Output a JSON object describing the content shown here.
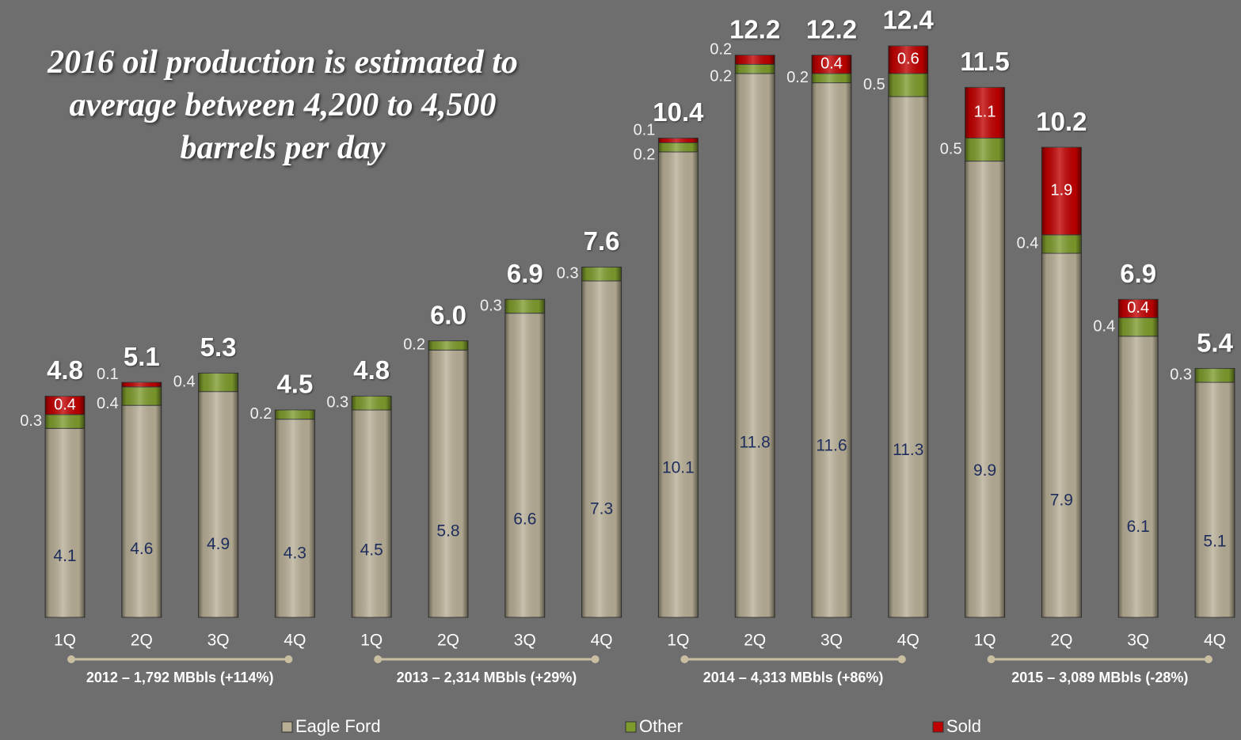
{
  "chart_data": {
    "type": "stacked_bar",
    "title": "2016 oil production is estimated to average between 4,200 to 4,500 barrels per day",
    "categories": [
      "1Q",
      "2Q",
      "3Q",
      "4Q",
      "1Q",
      "2Q",
      "3Q",
      "4Q",
      "1Q",
      "2Q",
      "3Q",
      "4Q",
      "1Q",
      "2Q",
      "3Q",
      "4Q"
    ],
    "groups": [
      {
        "label": "2012 – 1,792 MBbls (+114%)"
      },
      {
        "label": "2013 – 2,314 MBbls (+29%)"
      },
      {
        "label": "2014 – 4,313 MBbls (+86%)"
      },
      {
        "label": "2015 – 3,089 MBbls (-28%)"
      }
    ],
    "series": [
      {
        "name": "Eagle Ford",
        "color": "#b7ae95",
        "values": [
          4.1,
          4.6,
          4.9,
          4.3,
          4.5,
          5.8,
          6.6,
          7.3,
          10.1,
          11.8,
          11.6,
          11.3,
          9.9,
          7.9,
          6.1,
          5.1
        ]
      },
      {
        "name": "Other",
        "color": "#7d9b2c",
        "values": [
          0.3,
          0.4,
          0.4,
          0.2,
          0.3,
          0.2,
          0.3,
          0.3,
          0.2,
          0.2,
          0.2,
          0.5,
          0.5,
          0.4,
          0.4,
          0.3
        ]
      },
      {
        "name": "Sold",
        "color": "#c00000",
        "values": [
          0.4,
          0.1,
          null,
          null,
          null,
          null,
          null,
          null,
          0.1,
          0.2,
          0.4,
          0.6,
          1.1,
          1.9,
          0.4,
          null
        ]
      }
    ],
    "totals": {
      "values": [
        4.8,
        5.1,
        5.3,
        4.5,
        4.8,
        6,
        6.9,
        7.6,
        10.4,
        12.2,
        12.2,
        12.4,
        11.5,
        10.2,
        6.9,
        5.4
      ],
      "value_labels": [
        "4.8",
        "5.1",
        "5.3",
        "4.5",
        "4.8",
        "6.0",
        "6.9",
        "7.6",
        "10.4",
        "12.2",
        "12.2",
        "12.4",
        "11.5",
        "10.2",
        "6.9",
        "5.4"
      ]
    },
    "legend": "bottom"
  }
}
